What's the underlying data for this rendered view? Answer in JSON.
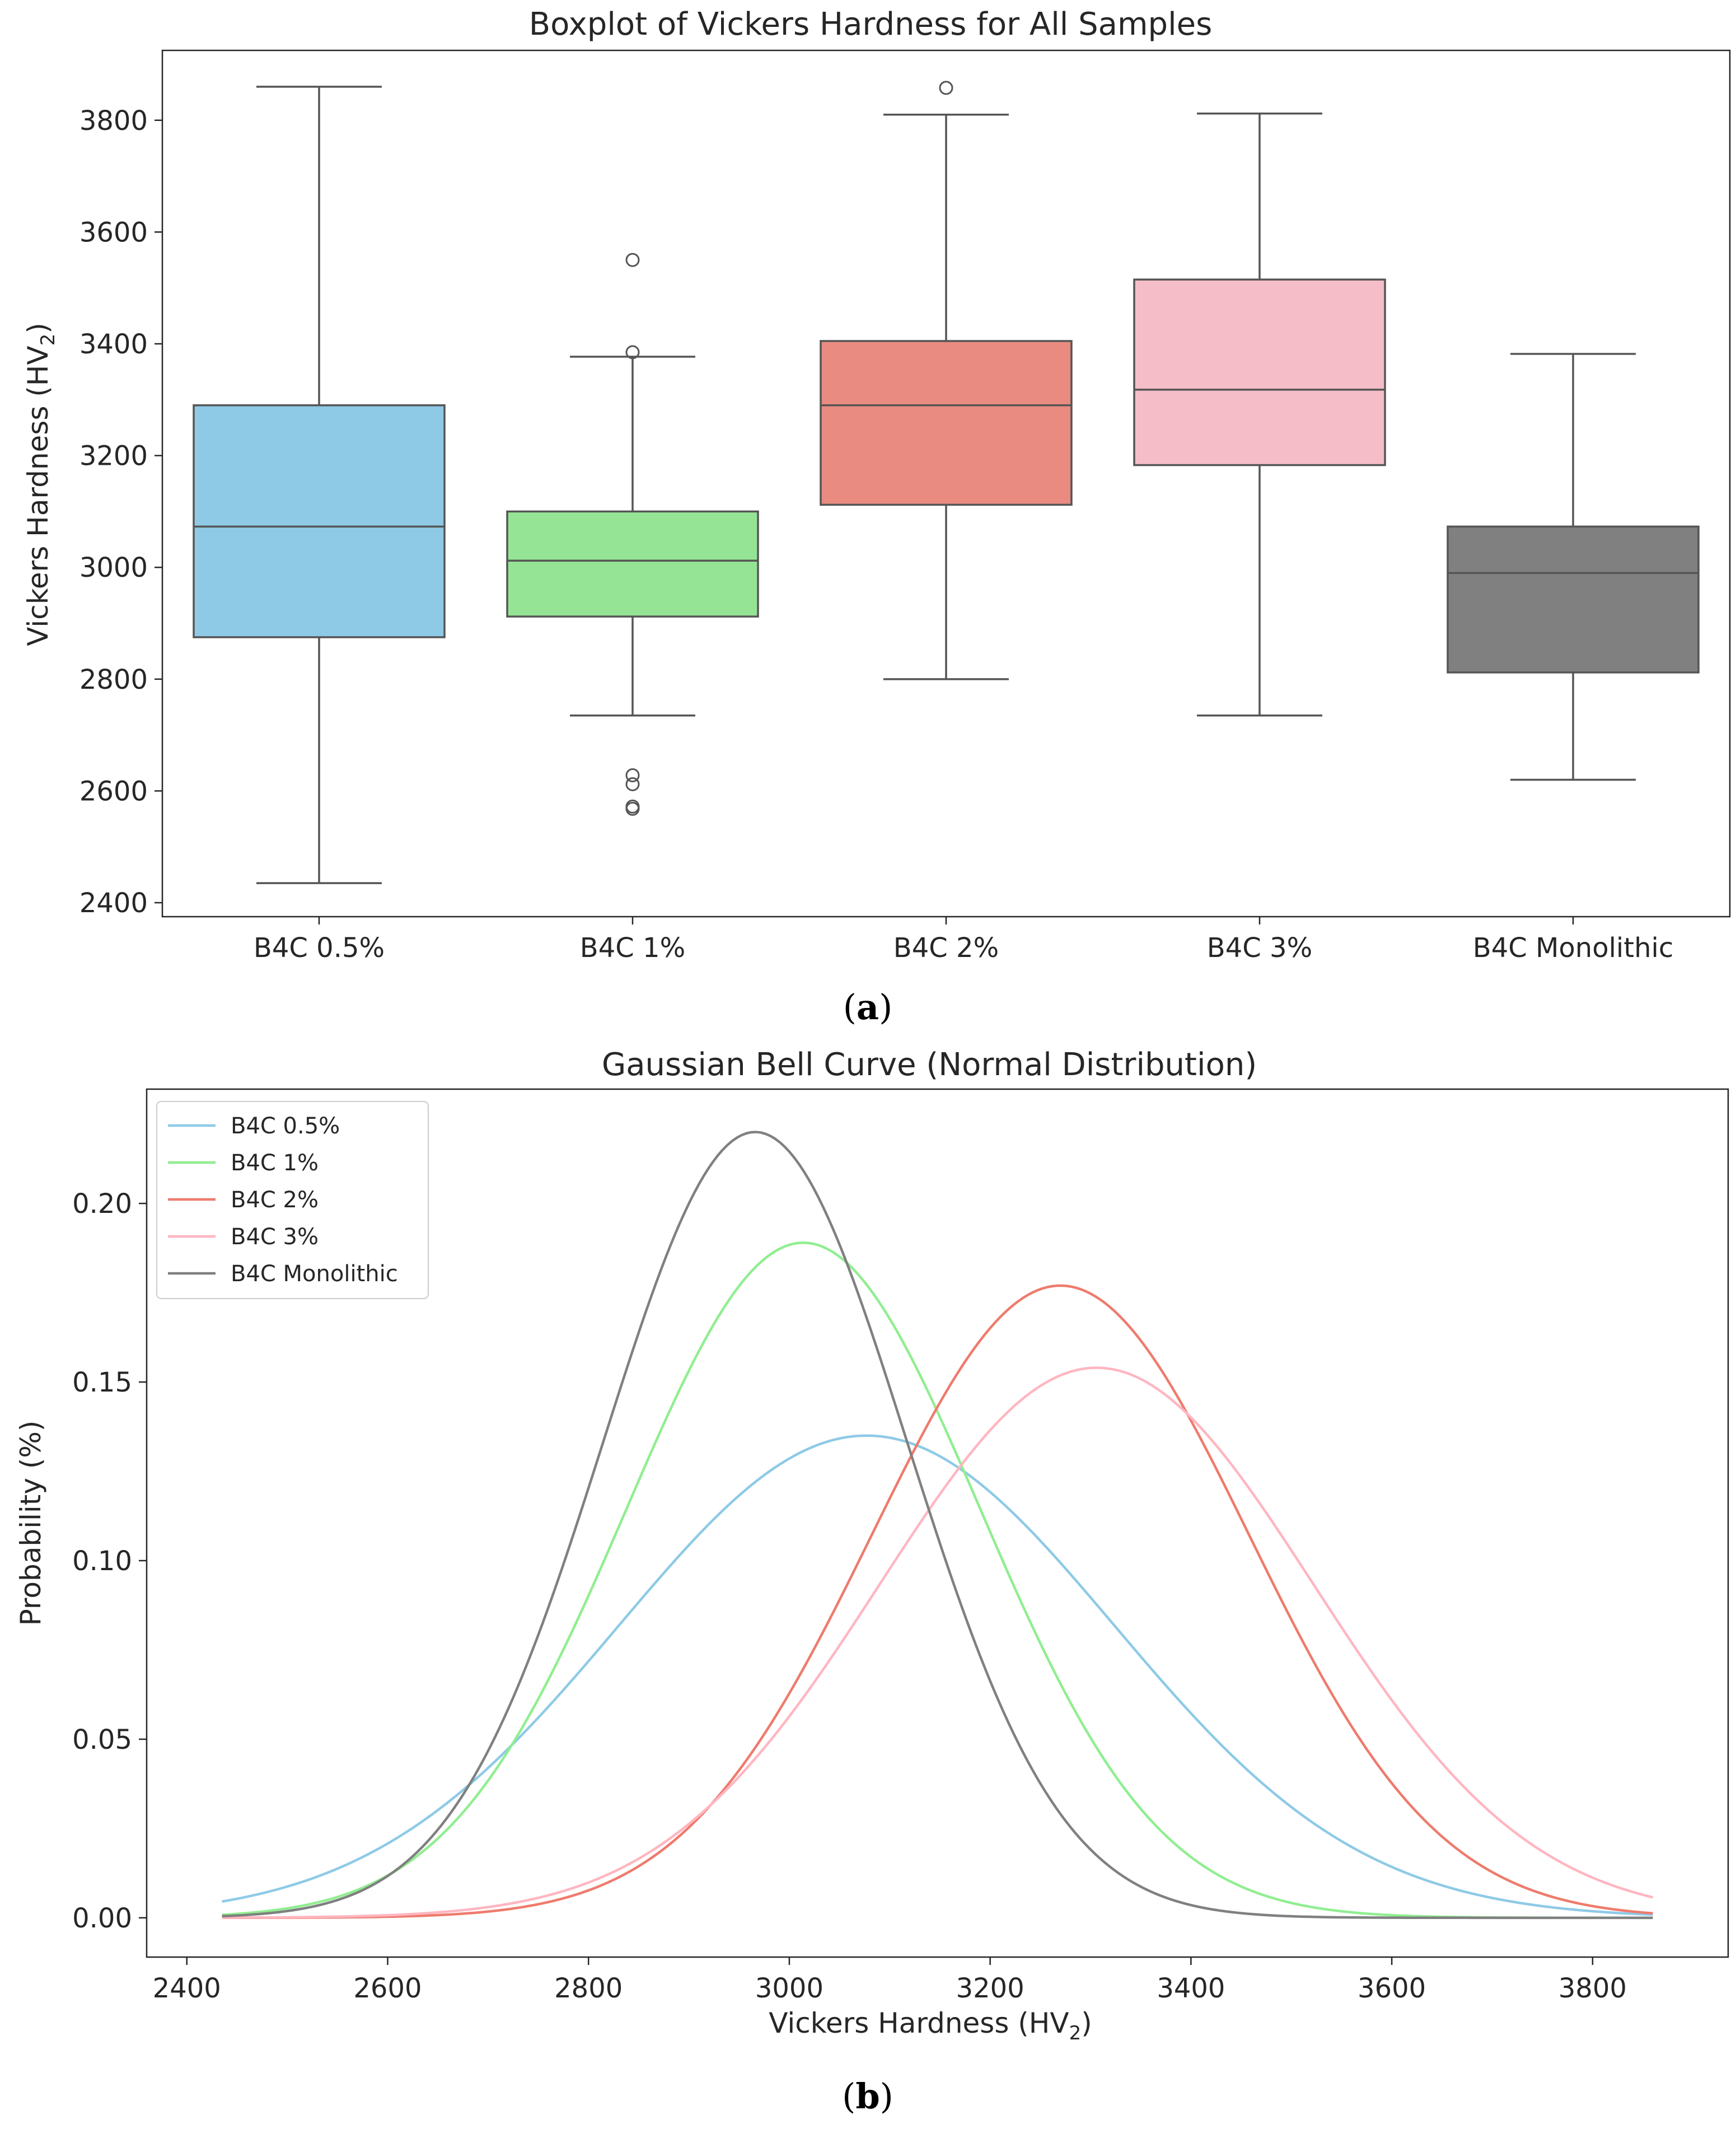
{
  "chart_data": [
    {
      "type": "boxplot",
      "title": "Boxplot of Vickers Hardness for All Samples",
      "xlabel": "",
      "ylabel": {
        "main": "Vickers Hardness (HV",
        "sub": "2",
        "end": ")"
      },
      "ylim": [
        2375,
        3925
      ],
      "yticks": [
        2400,
        2600,
        2800,
        3000,
        3200,
        3400,
        3600,
        3800
      ],
      "grid": false,
      "caption": {
        "open": "(",
        "letter": "a",
        "close": ")"
      },
      "series": [
        {
          "name": "B4C 0.5%",
          "color": "#8ecae6",
          "whisker_low": 2435,
          "q1": 2875,
          "median": 3073,
          "q3": 3290,
          "whisker_high": 3860,
          "outliers": []
        },
        {
          "name": "B4C 1%",
          "color": "#95e495",
          "whisker_low": 2735,
          "q1": 2912,
          "median": 3012,
          "q3": 3100,
          "whisker_high": 3377,
          "outliers": [
            2568,
            2572,
            2612,
            2628,
            3385,
            3550
          ]
        },
        {
          "name": "B4C 2%",
          "color": "#e98b80",
          "whisker_low": 2800,
          "q1": 3112,
          "median": 3290,
          "q3": 3405,
          "whisker_high": 3810,
          "outliers": [
            3858
          ]
        },
        {
          "name": "B4C 3%",
          "color": "#f5bdc8",
          "whisker_low": 2735,
          "q1": 3183,
          "median": 3318,
          "q3": 3515,
          "whisker_high": 3812,
          "outliers": []
        },
        {
          "name": "B4C Monolithic",
          "color": "#808080",
          "whisker_low": 2620,
          "q1": 2812,
          "median": 2990,
          "q3": 3073,
          "whisker_high": 3382,
          "outliers": []
        }
      ]
    },
    {
      "type": "line",
      "title": "Gaussian Bell Curve (Normal Distribution)",
      "xlabel": {
        "main": "Vickers Hardness (HV",
        "sub": "2",
        "end": ")"
      },
      "ylabel": "Probability (%)",
      "xlim": [
        2360,
        3935
      ],
      "ylim": [
        -0.011,
        0.232
      ],
      "xticks": [
        2400,
        2600,
        2800,
        3000,
        3200,
        3400,
        3600,
        3800
      ],
      "yticks": [
        0.0,
        0.05,
        0.1,
        0.15,
        0.2
      ],
      "ytick_labels": [
        "0.00",
        "0.05",
        "0.10",
        "0.15",
        "0.20"
      ],
      "x_range": [
        2435,
        3860
      ],
      "legend_position": "upper-left",
      "grid": false,
      "caption": {
        "open": "(",
        "letter": "b",
        "close": ")"
      },
      "series": [
        {
          "name": "B4C 0.5%",
          "color": "#8ecae6",
          "mean": 3077,
          "sd": 246.6,
          "peak": 0.135
        },
        {
          "name": "B4C 1%",
          "color": "#90ee90",
          "mean": 3014,
          "sd": 175.9,
          "peak": 0.189
        },
        {
          "name": "B4C 2%",
          "color": "#ee7b6d",
          "mean": 3270,
          "sd": 187.6,
          "peak": 0.177
        },
        {
          "name": "B4C 3%",
          "color": "#ffb6c1",
          "mean": 3306,
          "sd": 215.9,
          "peak": 0.154
        },
        {
          "name": "B4C Monolithic",
          "color": "#808080",
          "mean": 2966,
          "sd": 151.1,
          "peak": 0.22
        }
      ]
    }
  ]
}
